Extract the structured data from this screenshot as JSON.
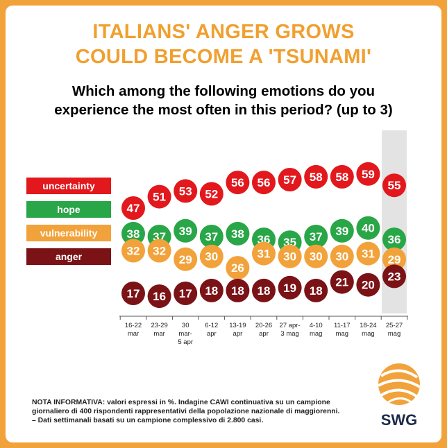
{
  "title_line1": "ITALIANS' ANGER GROWS",
  "title_line2": "COULD BECOME A 'TSUNAMI'",
  "question_line1": "Which among the following emotions do you",
  "question_line2": "experience the most often in this period? (up to 3)",
  "colors": {
    "accent": "#f0a030",
    "uncertainty": "#e2181d",
    "hope": "#29a647",
    "vulnerability": "#f2a23a",
    "anger": "#7b1216",
    "highlight": "#e3e3e3"
  },
  "chart_data": {
    "type": "line",
    "categories": [
      [
        "16-22",
        "mar"
      ],
      [
        "23-29",
        "mar"
      ],
      [
        "30",
        "mar-",
        "5 apr"
      ],
      [
        "6-12",
        "apr"
      ],
      [
        "13-19",
        "apr"
      ],
      [
        "20-26",
        "apr"
      ],
      [
        "27 apr-",
        "3 mag"
      ],
      [
        "4-10",
        "mag"
      ],
      [
        "11-17",
        "mag"
      ],
      [
        "18-24",
        "mag"
      ],
      [
        "25-27",
        "mag"
      ]
    ],
    "highlighted_category_index": 10,
    "series": [
      {
        "name": "uncertainty",
        "color": "#e2181d",
        "values": [
          47,
          51,
          53,
          52,
          56,
          56,
          57,
          58,
          58,
          59,
          55
        ]
      },
      {
        "name": "hope",
        "color": "#29a647",
        "values": [
          38,
          37,
          39,
          37,
          38,
          36,
          35,
          37,
          39,
          40,
          36
        ]
      },
      {
        "name": "vulnerability",
        "color": "#f2a23a",
        "values": [
          32,
          32,
          29,
          30,
          26,
          31,
          30,
          30,
          30,
          31,
          29
        ]
      },
      {
        "name": "anger",
        "color": "#7b1216",
        "values": [
          17,
          16,
          17,
          18,
          18,
          18,
          19,
          18,
          21,
          20,
          23
        ]
      }
    ],
    "legend": "left",
    "grid": false
  },
  "footnote": [
    "NOTA INFORMATIVA: valori espressi in %. Indagine CAWI continuativa su un campione",
    "giornaliero di 400 rispondenti rappresentativi della popolazione nazionale di maggiorenni.",
    "– Dati settimanali basati su un campione complessivo di 2.800 casi."
  ],
  "logo_text": "SWG"
}
